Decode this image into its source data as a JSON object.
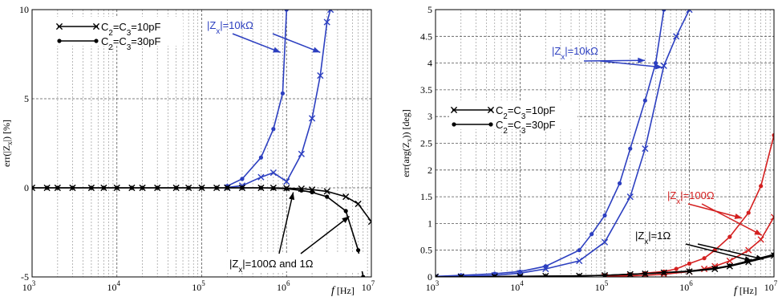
{
  "chart_data": [
    {
      "id": "left",
      "type": "line",
      "xscale": "log",
      "xlim": [
        1000,
        10000000
      ],
      "ylim": [
        -5,
        10
      ],
      "xticks": [
        1000,
        10000,
        100000,
        1000000,
        10000000
      ],
      "xtick_labels": [
        {
          "base": "10",
          "exp": "3"
        },
        {
          "base": "10",
          "exp": "4"
        },
        {
          "base": "10",
          "exp": "5"
        },
        {
          "base": "10",
          "exp": "6"
        },
        {
          "base": "10",
          "exp": "7"
        }
      ],
      "yticks": [
        -5,
        0,
        5,
        10
      ],
      "ytick_labels": [
        "-5",
        "0",
        "5",
        "10"
      ],
      "xlabel": {
        "var": "f",
        "unit": "[Hz]"
      },
      "ylabel": {
        "pre": "err(|Z",
        "sub": "x",
        "post": "|) [%]"
      },
      "grid": true,
      "legend": {
        "placement": "top-left",
        "entries": [
          {
            "marker": "x",
            "parts": [
              "C",
              "2",
              "=C",
              "3",
              "=10pF"
            ]
          },
          {
            "marker": "dot",
            "parts": [
              "C",
              "2",
              "=C",
              "3",
              "=30pF"
            ]
          }
        ]
      },
      "series": [
        {
          "color": "#2c3fc0",
          "marker": "dot",
          "x": [
            200000,
            300000,
            500000,
            700000,
            900000,
            1000000
          ],
          "y": [
            0.1,
            0.5,
            1.7,
            3.3,
            5.3,
            10
          ]
        },
        {
          "color": "#2c3fc0",
          "marker": "x",
          "x": [
            200000,
            300000,
            500000,
            700000,
            1000000,
            1500000,
            2000000,
            2500000,
            3000000,
            3300000
          ],
          "y": [
            0.02,
            0.12,
            0.6,
            0.85,
            0.35,
            1.9,
            3.9,
            6.3,
            9.3,
            10
          ]
        },
        {
          "color": "#000000",
          "marker": "x",
          "x": [
            1000,
            1500,
            2000,
            3000,
            5000,
            7000,
            10000,
            15000,
            20000,
            30000,
            50000,
            70000,
            100000,
            150000,
            200000,
            300000,
            500000,
            700000,
            1000000,
            1500000,
            2000000,
            3000000,
            5000000,
            7000000,
            10000000
          ],
          "y": [
            0,
            0,
            0,
            0,
            0,
            0,
            0,
            0,
            0,
            0,
            0,
            0,
            0,
            0,
            0,
            0,
            0,
            0,
            -0.02,
            -0.05,
            -0.1,
            -0.2,
            -0.5,
            -0.9,
            -1.9
          ]
        },
        {
          "color": "#000000",
          "marker": "dot",
          "x": [
            1000,
            1500,
            2000,
            3000,
            5000,
            7000,
            10000,
            15000,
            20000,
            30000,
            50000,
            70000,
            100000,
            150000,
            200000,
            300000,
            500000,
            700000,
            1000000,
            1500000,
            2000000,
            3000000,
            5000000,
            7000000,
            8000000
          ],
          "y": [
            0,
            0,
            0,
            0,
            0,
            0,
            0,
            0,
            0,
            0,
            0,
            0,
            0,
            0,
            0,
            0,
            0,
            -0.02,
            -0.05,
            -0.15,
            -0.25,
            -0.5,
            -1.3,
            -3.5,
            -5
          ]
        }
      ],
      "annotations": [
        {
          "color": "#2c3fc0",
          "parts": [
            "|Z",
            "x",
            "|=10kΩ"
          ]
        },
        {
          "color": "#000000",
          "parts": [
            "|Z",
            "x",
            "|=100Ω and 1Ω"
          ]
        }
      ]
    },
    {
      "id": "right",
      "type": "line",
      "xscale": "log",
      "xlim": [
        1000,
        10000000
      ],
      "ylim": [
        0,
        5
      ],
      "xticks": [
        1000,
        10000,
        100000,
        1000000,
        10000000
      ],
      "xtick_labels": [
        {
          "base": "10",
          "exp": "3"
        },
        {
          "base": "10",
          "exp": "4"
        },
        {
          "base": "10",
          "exp": "5"
        },
        {
          "base": "10",
          "exp": "6"
        },
        {
          "base": "10",
          "exp": "7"
        }
      ],
      "yticks": [
        0,
        0.5,
        1,
        1.5,
        2,
        2.5,
        3,
        3.5,
        4,
        4.5,
        5
      ],
      "ytick_labels": [
        "0",
        "0.5",
        "1",
        "1.5",
        "2",
        "2.5",
        "3",
        "3.5",
        "4",
        "4.5",
        "5"
      ],
      "xlabel": {
        "var": "f",
        "unit": "[Hz]"
      },
      "ylabel": {
        "pre": "err(arg(Z",
        "sub": "x",
        "post": ")) [deg]"
      },
      "grid": true,
      "legend": {
        "placement": "center-left",
        "entries": [
          {
            "marker": "x",
            "parts": [
              "C",
              "2",
              "=C",
              "3",
              "=10pF"
            ]
          },
          {
            "marker": "dot",
            "parts": [
              "C",
              "2",
              "=C",
              "3",
              "=30pF"
            ]
          }
        ]
      },
      "series": [
        {
          "color": "#2c3fc0",
          "marker": "dot",
          "x": [
            1000,
            2000,
            5000,
            10000,
            20000,
            50000,
            70000,
            100000,
            150000,
            200000,
            300000,
            400000,
            500000
          ],
          "y": [
            0.01,
            0.03,
            0.06,
            0.1,
            0.2,
            0.5,
            0.8,
            1.15,
            1.75,
            2.4,
            3.3,
            4.0,
            5.0
          ]
        },
        {
          "color": "#2c3fc0",
          "marker": "x",
          "x": [
            1000,
            2000,
            5000,
            10000,
            20000,
            50000,
            100000,
            200000,
            300000,
            500000,
            700000,
            1000000
          ],
          "y": [
            0.005,
            0.01,
            0.03,
            0.07,
            0.15,
            0.3,
            0.65,
            1.5,
            2.4,
            3.95,
            4.5,
            5.0
          ]
        },
        {
          "color": "#d42020",
          "marker": "dot",
          "x": [
            100000,
            200000,
            300000,
            500000,
            700000,
            1000000,
            1500000,
            2000000,
            3000000,
            5000000,
            7000000,
            10000000
          ],
          "y": [
            0.02,
            0.04,
            0.07,
            0.1,
            0.15,
            0.25,
            0.35,
            0.5,
            0.75,
            1.2,
            1.7,
            2.65
          ]
        },
        {
          "color": "#d42020",
          "marker": "x",
          "x": [
            100000,
            200000,
            300000,
            500000,
            1000000,
            1500000,
            2000000,
            3000000,
            5000000,
            7000000,
            10000000
          ],
          "y": [
            0.01,
            0.02,
            0.03,
            0.05,
            0.1,
            0.15,
            0.2,
            0.3,
            0.5,
            0.7,
            1.12
          ]
        },
        {
          "color": "#000000",
          "marker": "x",
          "x": [
            1000,
            2000,
            5000,
            10000,
            20000,
            50000,
            100000,
            200000,
            300000,
            500000,
            1000000,
            2000000,
            3000000,
            5000000,
            10000000
          ],
          "y": [
            0,
            0,
            0.005,
            0.01,
            0.015,
            0.02,
            0.03,
            0.05,
            0.06,
            0.08,
            0.1,
            0.15,
            0.2,
            0.28,
            0.4
          ]
        },
        {
          "color": "#000000",
          "marker": "dot",
          "x": [
            1000,
            2000,
            5000,
            10000,
            20000,
            50000,
            100000,
            200000,
            300000,
            500000,
            1000000,
            2000000,
            3000000,
            5000000,
            10000000
          ],
          "y": [
            0,
            0,
            0.005,
            0.01,
            0.015,
            0.02,
            0.03,
            0.05,
            0.06,
            0.08,
            0.11,
            0.16,
            0.21,
            0.3,
            0.42
          ]
        }
      ],
      "annotations": [
        {
          "color": "#2c3fc0",
          "parts": [
            "|Z",
            "x",
            "|=10kΩ"
          ]
        },
        {
          "color": "#d42020",
          "parts": [
            "|Z",
            "x",
            "|=100Ω"
          ]
        },
        {
          "color": "#000000",
          "parts": [
            "|Z",
            "x",
            "|=1Ω"
          ]
        }
      ]
    }
  ]
}
